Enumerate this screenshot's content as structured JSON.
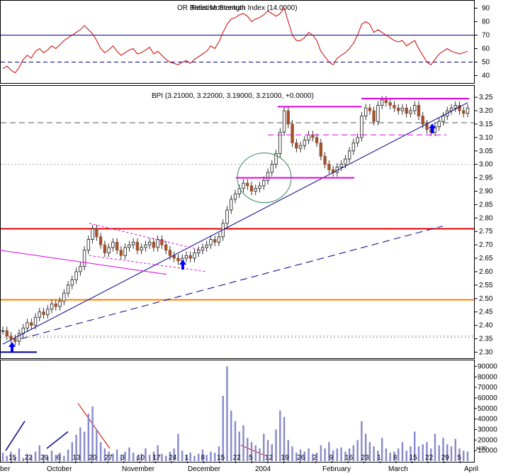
{
  "colors": {
    "rsi_line": "#cc0000",
    "price_up": "#1a1a1a",
    "price_down": "#a0522d",
    "trend_line": "#00008b",
    "magenta": "#e000e0",
    "red_level": "#e00000",
    "orange_level": "#ff7f00",
    "volume_bar": "#8888cc",
    "grid": "#999999",
    "dashed_level": "#555555"
  },
  "rsi_panel": {
    "label": "Relative Strength Index (14.0000)",
    "overlay_label": "OR Bates Momentum",
    "ticks": [
      "90",
      "80",
      "70",
      "60",
      "50",
      "40"
    ],
    "levels": [
      70,
      50
    ]
  },
  "price_panel": {
    "label": "BPI (3.21000, 3.22000, 3.19000, 3.21000, +0.0000)",
    "ticks": [
      "3.25",
      "3.20",
      "3.15",
      "3.10",
      "3.05",
      "3.00",
      "2.95",
      "2.90",
      "2.85",
      "2.80",
      "2.75",
      "2.70",
      "2.65",
      "2.60",
      "2.55",
      "2.50",
      "2.45",
      "2.40",
      "2.35",
      "2.30"
    ],
    "horizontal_levels": [
      {
        "value": 2.76,
        "role": "resistance"
      },
      {
        "value": 2.495,
        "role": "support"
      },
      {
        "value": 3.155,
        "role": "dashed"
      },
      {
        "value": 3.0,
        "role": "dotted"
      },
      {
        "value": 2.355,
        "role": "dotted"
      },
      {
        "value": 2.36,
        "role": "dotted"
      }
    ]
  },
  "volume_panel": {
    "ticks": [
      "90000",
      "80000",
      "70000",
      "60000",
      "50000",
      "40000",
      "30000",
      "20000",
      "10000"
    ],
    "multiplier_label": "x100"
  },
  "x_axis": {
    "day_labels": [
      "15",
      "22",
      "29",
      "6",
      "13",
      "20",
      "27",
      "3",
      "10",
      "17",
      "24",
      "1",
      "8",
      "15",
      "22",
      "5",
      "12",
      "19",
      "26",
      "2",
      "9",
      "16",
      "23",
      "1",
      "8",
      "15",
      "22",
      "29",
      "5"
    ],
    "month_labels": [
      "ber",
      "October",
      "November",
      "December",
      "2004",
      "February",
      "March",
      "April"
    ]
  },
  "chart_data": {
    "type": "bar",
    "title": "BPI (3.21000, 3.22000, 3.19000, 3.21000, +0.0000)",
    "last_bar": {
      "open": 3.21,
      "high": 3.22,
      "low": 3.19,
      "close": 3.21,
      "change": 0.0
    },
    "price_axis_range": [
      2.28,
      3.29
    ],
    "rsi_axis_range": [
      35,
      95
    ],
    "volume_axis_range": [
      0,
      95000
    ],
    "volume_unit_multiplier": 100,
    "price_close_series": [
      2.38,
      2.36,
      2.35,
      2.34,
      2.37,
      2.39,
      2.41,
      2.4,
      2.43,
      2.45,
      2.44,
      2.46,
      2.48,
      2.47,
      2.49,
      2.52,
      2.55,
      2.57,
      2.6,
      2.62,
      2.68,
      2.72,
      2.76,
      2.73,
      2.7,
      2.67,
      2.69,
      2.71,
      2.68,
      2.66,
      2.69,
      2.7,
      2.71,
      2.68,
      2.69,
      2.7,
      2.71,
      2.69,
      2.72,
      2.7,
      2.68,
      2.66,
      2.65,
      2.64,
      2.65,
      2.66,
      2.65,
      2.67,
      2.68,
      2.69,
      2.7,
      2.72,
      2.71,
      2.73,
      2.78,
      2.83,
      2.87,
      2.89,
      2.91,
      2.93,
      2.92,
      2.9,
      2.91,
      2.92,
      2.94,
      2.97,
      3.0,
      3.04,
      3.12,
      3.2,
      3.15,
      3.08,
      3.06,
      3.07,
      3.09,
      3.11,
      3.1,
      3.08,
      3.03,
      3.0,
      2.98,
      2.97,
      2.99,
      3.0,
      3.02,
      3.05,
      3.08,
      3.1,
      3.18,
      3.21,
      3.2,
      3.16,
      3.22,
      3.24,
      3.23,
      3.22,
      3.21,
      3.2,
      3.21,
      3.19,
      3.2,
      3.22,
      3.18,
      3.15,
      3.13,
      3.12,
      3.14,
      3.16,
      3.18,
      3.2,
      3.21,
      3.22,
      3.2,
      3.19,
      3.21
    ],
    "rsi_series": [
      45,
      47,
      44,
      42,
      46,
      52,
      55,
      53,
      58,
      60,
      57,
      59,
      62,
      60,
      63,
      66,
      68,
      70,
      72,
      74,
      77,
      74,
      71,
      66,
      60,
      57,
      59,
      62,
      58,
      55,
      57,
      59,
      60,
      56,
      57,
      59,
      61,
      56,
      58,
      55,
      52,
      50,
      49,
      48,
      50,
      51,
      49,
      52,
      54,
      56,
      58,
      62,
      60,
      65,
      72,
      78,
      82,
      83,
      85,
      86,
      84,
      80,
      82,
      83,
      85,
      88,
      86,
      84,
      86,
      90,
      80,
      70,
      66,
      66,
      68,
      72,
      70,
      66,
      58,
      54,
      50,
      48,
      53,
      55,
      57,
      60,
      64,
      70,
      78,
      80,
      78,
      72,
      74,
      72,
      70,
      68,
      66,
      65,
      66,
      62,
      64,
      66,
      60,
      55,
      50,
      48,
      52,
      56,
      58,
      60,
      58,
      57,
      56,
      57,
      58
    ],
    "volume_series": [
      8000,
      5000,
      9000,
      4000,
      12000,
      3000,
      7000,
      5000,
      9000,
      15000,
      6000,
      4000,
      10000,
      6000,
      8000,
      5000,
      11000,
      18000,
      25000,
      32000,
      28000,
      45000,
      52000,
      30000,
      18000,
      12000,
      9000,
      7000,
      11000,
      6000,
      9000,
      13000,
      8000,
      5000,
      7000,
      12000,
      6000,
      9000,
      15000,
      7000,
      5000,
      9000,
      12000,
      26000,
      10000,
      6000,
      8000,
      5000,
      7000,
      11000,
      6000,
      9000,
      8000,
      14000,
      62000,
      90000,
      48000,
      38000,
      28000,
      34000,
      22000,
      18000,
      15000,
      12000,
      26000,
      20000,
      16000,
      30000,
      48000,
      42000,
      20000,
      14000,
      8000,
      11000,
      9000,
      12000,
      7000,
      8000,
      15000,
      12000,
      18000,
      10000,
      12000,
      13000,
      9000,
      12000,
      15000,
      20000,
      38000,
      26000,
      18000,
      14000,
      10000,
      22000,
      12000,
      8000,
      9000,
      12000,
      18000,
      10000,
      14000,
      28000,
      14000,
      16000,
      18000,
      12000,
      26000,
      15000,
      22000,
      16000,
      14000,
      21000,
      12000,
      10000,
      9000
    ]
  }
}
